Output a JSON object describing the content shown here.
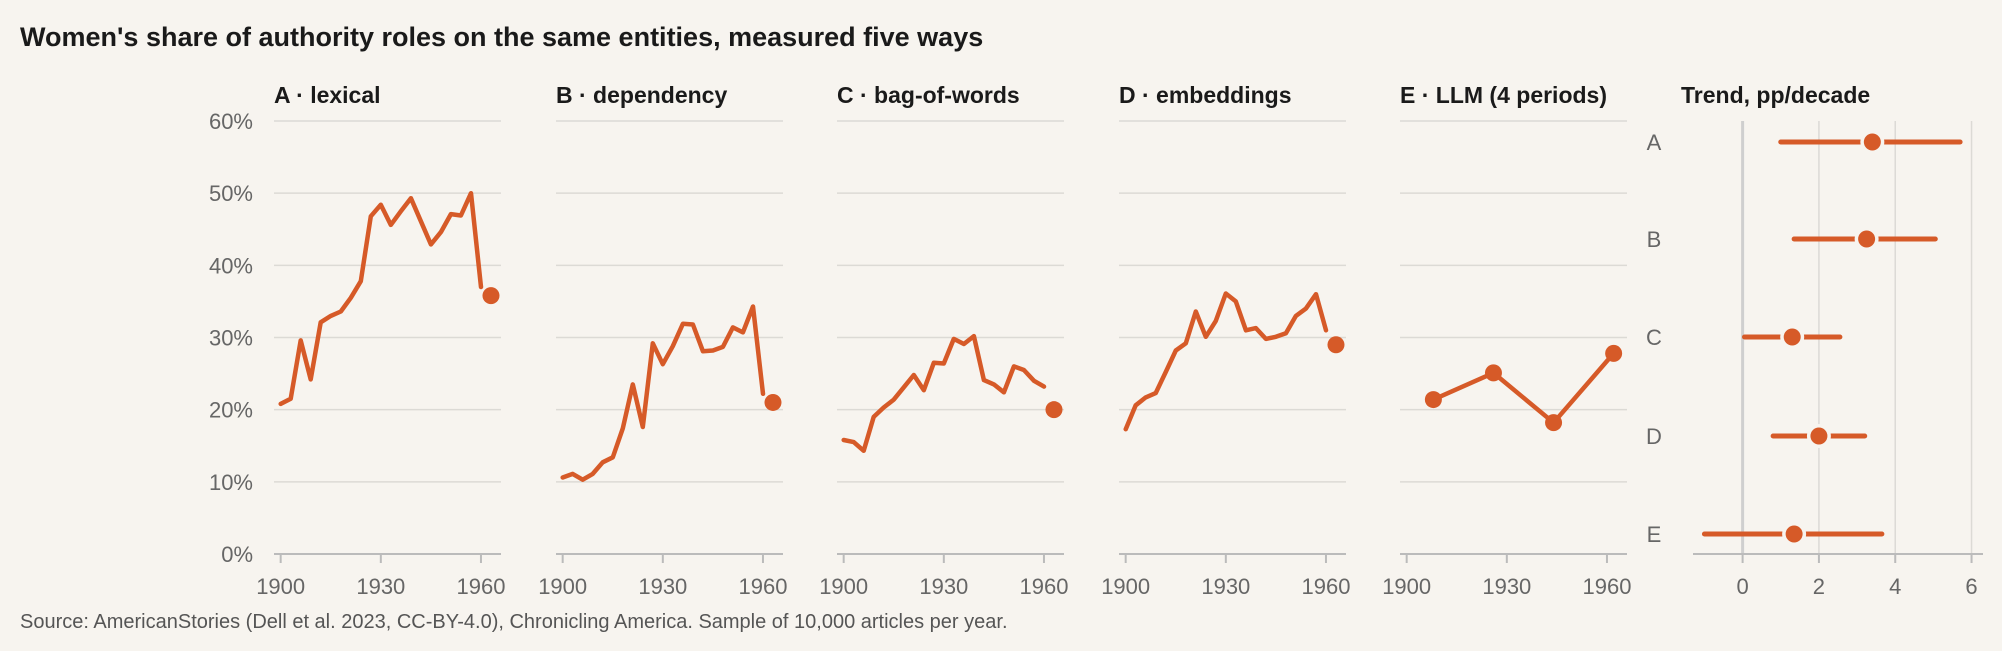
{
  "title": "Women's share of authority roles on the same entities, measured five ways",
  "source": "Source: AmericanStories (Dell et al. 2023, CC-BY-4.0), Chronicling America. Sample of 10,000 articles per year.",
  "colors": {
    "accent": "#d65a28",
    "grid": "#dcdad5",
    "axis": "#bbbbbb",
    "zero_line": "#cfcfcf",
    "text": "#1a1a1a",
    "muted": "#666666",
    "background": "#f7f4ef"
  },
  "chart_data": [
    {
      "type": "line",
      "panel": "A",
      "title": "A · lexical",
      "xlim": [
        1898,
        1966
      ],
      "ylim": [
        0,
        60
      ],
      "x_ticks": [
        1900,
        1930,
        1960
      ],
      "y_ticks": [
        0,
        10,
        20,
        30,
        40,
        50,
        60
      ],
      "y_tick_labels": [
        "0%",
        "10%",
        "20%",
        "30%",
        "40%",
        "50%",
        "60%"
      ],
      "grid": true,
      "x": [
        1900,
        1903,
        1906,
        1909,
        1912,
        1915,
        1918,
        1921,
        1924,
        1927,
        1930,
        1933,
        1936,
        1939,
        1942,
        1945,
        1948,
        1951,
        1954,
        1957,
        1960
      ],
      "y": [
        20.8,
        21.5,
        29.6,
        24.2,
        32.1,
        33.0,
        33.6,
        35.5,
        37.8,
        46.8,
        48.4,
        45.6,
        47.5,
        49.3,
        46.1,
        42.9,
        44.6,
        47.1,
        46.9,
        50.0,
        37.0
      ],
      "endpoint": {
        "x": 1963,
        "y": 35.8
      }
    },
    {
      "type": "line",
      "panel": "B",
      "title": "B · dependency",
      "xlim": [
        1898,
        1966
      ],
      "ylim": [
        0,
        60
      ],
      "x_ticks": [
        1900,
        1930,
        1960
      ],
      "y_ticks": [
        0,
        10,
        20,
        30,
        40,
        50,
        60
      ],
      "grid": true,
      "x": [
        1900,
        1903,
        1906,
        1909,
        1912,
        1915,
        1918,
        1921,
        1924,
        1927,
        1930,
        1933,
        1936,
        1939,
        1942,
        1945,
        1948,
        1951,
        1954,
        1957,
        1960
      ],
      "y": [
        10.6,
        11.1,
        10.3,
        11.1,
        12.7,
        13.4,
        17.4,
        23.5,
        17.6,
        29.2,
        26.3,
        28.8,
        31.9,
        31.8,
        28.1,
        28.2,
        28.7,
        31.4,
        30.7,
        34.3,
        22.2
      ],
      "endpoint": {
        "x": 1963,
        "y": 21.0
      }
    },
    {
      "type": "line",
      "panel": "C",
      "title": "C · bag-of-words",
      "xlim": [
        1898,
        1966
      ],
      "ylim": [
        0,
        60
      ],
      "x_ticks": [
        1900,
        1930,
        1960
      ],
      "y_ticks": [
        0,
        10,
        20,
        30,
        40,
        50,
        60
      ],
      "grid": true,
      "x": [
        1900,
        1903,
        1906,
        1909,
        1912,
        1915,
        1918,
        1921,
        1924,
        1927,
        1930,
        1933,
        1936,
        1939,
        1942,
        1945,
        1948,
        1951,
        1954,
        1957,
        1960
      ],
      "y": [
        15.8,
        15.5,
        14.3,
        19.0,
        20.3,
        21.4,
        23.1,
        24.8,
        22.7,
        26.5,
        26.4,
        29.8,
        29.1,
        30.2,
        24.1,
        23.5,
        22.4,
        26.0,
        25.5,
        24.0,
        23.2
      ],
      "endpoint": {
        "x": 1963,
        "y": 20.0
      }
    },
    {
      "type": "line",
      "panel": "D",
      "title": "D · embeddings",
      "xlim": [
        1898,
        1966
      ],
      "ylim": [
        0,
        60
      ],
      "x_ticks": [
        1900,
        1930,
        1960
      ],
      "y_ticks": [
        0,
        10,
        20,
        30,
        40,
        50,
        60
      ],
      "grid": true,
      "x": [
        1900,
        1903,
        1906,
        1909,
        1912,
        1915,
        1918,
        1921,
        1924,
        1927,
        1930,
        1933,
        1936,
        1939,
        1942,
        1945,
        1948,
        1951,
        1954,
        1957,
        1960
      ],
      "y": [
        17.3,
        20.6,
        21.7,
        22.3,
        25.2,
        28.2,
        29.2,
        33.6,
        30.1,
        32.3,
        36.1,
        35.0,
        31.0,
        31.3,
        29.8,
        30.1,
        30.6,
        33.0,
        34.0,
        36.0,
        31.0
      ],
      "endpoint": {
        "x": 1963,
        "y": 29.0
      }
    },
    {
      "type": "line",
      "panel": "E",
      "title": "E · LLM (4 periods)",
      "xlim": [
        1898,
        1966
      ],
      "ylim": [
        0,
        60
      ],
      "x_ticks": [
        1900,
        1930,
        1960
      ],
      "y_ticks": [
        0,
        10,
        20,
        30,
        40,
        50,
        60
      ],
      "grid": true,
      "markers": true,
      "x": [
        1908,
        1926,
        1944,
        1962
      ],
      "y": [
        21.4,
        25.1,
        18.2,
        27.8
      ]
    },
    {
      "type": "scatter",
      "panel": "Trend",
      "title": "Trend, pp/decade",
      "categories": [
        "A",
        "B",
        "C",
        "D",
        "E"
      ],
      "estimates": [
        3.4,
        3.25,
        1.3,
        2.0,
        1.35
      ],
      "ci_low": [
        1.0,
        1.35,
        0.05,
        0.8,
        -1.0
      ],
      "ci_high": [
        5.7,
        5.05,
        2.55,
        3.2,
        3.65
      ],
      "xlim": [
        -1.3,
        6.3
      ],
      "x_ticks": [
        0,
        2,
        4,
        6
      ],
      "grid": true
    }
  ]
}
